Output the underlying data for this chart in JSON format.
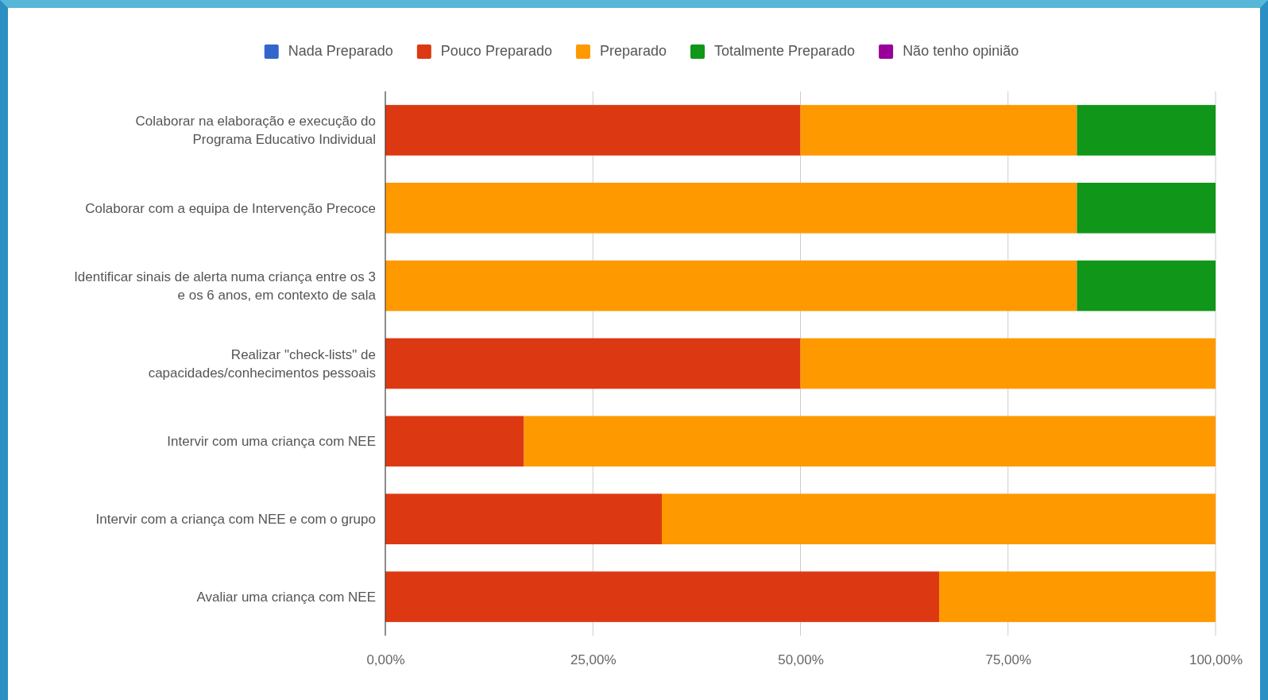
{
  "chart_data": {
    "type": "bar",
    "orientation": "horizontal",
    "stacked": true,
    "legend": "top",
    "grid": "x",
    "categories": [
      "Colaborar na elaboração e execução do Programa Educativo Individual",
      "Colaborar com a equipa de Intervenção Precoce",
      "Identificar sinais de alerta numa criança entre os 3 e os 6 anos, em contexto de sala",
      "Realizar \"check-lists\" de capacidades/conhecimentos pessoais",
      "Intervir com uma criança com NEE",
      "Intervir com a criança com NEE e com o grupo",
      "Avaliar uma criança com NEE"
    ],
    "series": [
      {
        "name": "Nada Preparado",
        "color": "#3366cc",
        "values": [
          0,
          0,
          0,
          0,
          0,
          0,
          0
        ]
      },
      {
        "name": "Pouco Preparado",
        "color": "#dc3912",
        "values": [
          50,
          0,
          0,
          50,
          16.7,
          33.3,
          66.7
        ]
      },
      {
        "name": "Preparado",
        "color": "#ff9900",
        "values": [
          33.3,
          83.3,
          83.3,
          50,
          83.3,
          66.7,
          33.3
        ]
      },
      {
        "name": "Totalmente Preparado",
        "color": "#109618",
        "values": [
          16.7,
          16.7,
          16.7,
          0,
          0,
          0,
          0
        ]
      },
      {
        "name": "Não tenho opinião",
        "color": "#990099",
        "values": [
          0,
          0,
          0,
          0,
          0,
          0,
          0
        ]
      }
    ],
    "xlim": [
      0,
      100
    ],
    "xticks": [
      {
        "value": 0,
        "label": "0,00%"
      },
      {
        "value": 25,
        "label": "25,00%"
      },
      {
        "value": 50,
        "label": "50,00%"
      },
      {
        "value": 75,
        "label": "75,00%"
      },
      {
        "value": 100,
        "label": "100,00%"
      }
    ]
  }
}
